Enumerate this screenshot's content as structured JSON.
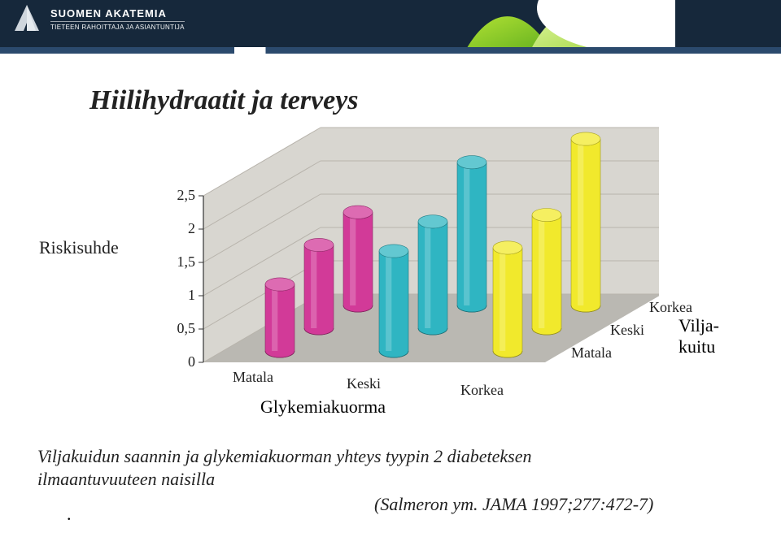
{
  "header": {
    "brand": {
      "line1": "SUOMEN AKATEMIA",
      "line2": "TIETEEN RAHOITTAJA JA ASIANTUNTIJA"
    },
    "band_color": "#16283b",
    "accent_color": "#2b4a6d"
  },
  "title": "Hiilihydraatit ja terveys",
  "chart": {
    "type": "3d-cylinder-bar",
    "ylabel": "Riskisuhde",
    "xlabel": "Glykemiakuorma",
    "zlabel_line1": "Vilja-",
    "zlabel_line2": "kuitu",
    "x_categories": [
      "Matala",
      "Keski",
      "Korkea"
    ],
    "z_categories": [
      "Matala",
      "Keski",
      "Korkea"
    ],
    "ylim": [
      0,
      2.5
    ],
    "ytick_step": 0.5,
    "series_colors": [
      "#d23a98",
      "#2fb5c2",
      "#f1e92c"
    ],
    "background_wall": "#d8d6d0",
    "floor": "#bab8b2",
    "grid_color": "#b8b4ac",
    "cylinder_radius": 18,
    "values": [
      [
        1.0,
        1.25,
        1.4
      ],
      [
        1.5,
        1.6,
        2.15
      ],
      [
        1.55,
        1.7,
        2.5
      ]
    ],
    "decimal_separator": ","
  },
  "caption": {
    "line1": "Viljakuidun saannin ja glykemiakuorman yhteys tyypin 2 diabeteksen",
    "line2": "ilmaantuvuuteen naisilla",
    "citation": "(Salmeron ym. JAMA 1997;277:472-7)"
  }
}
